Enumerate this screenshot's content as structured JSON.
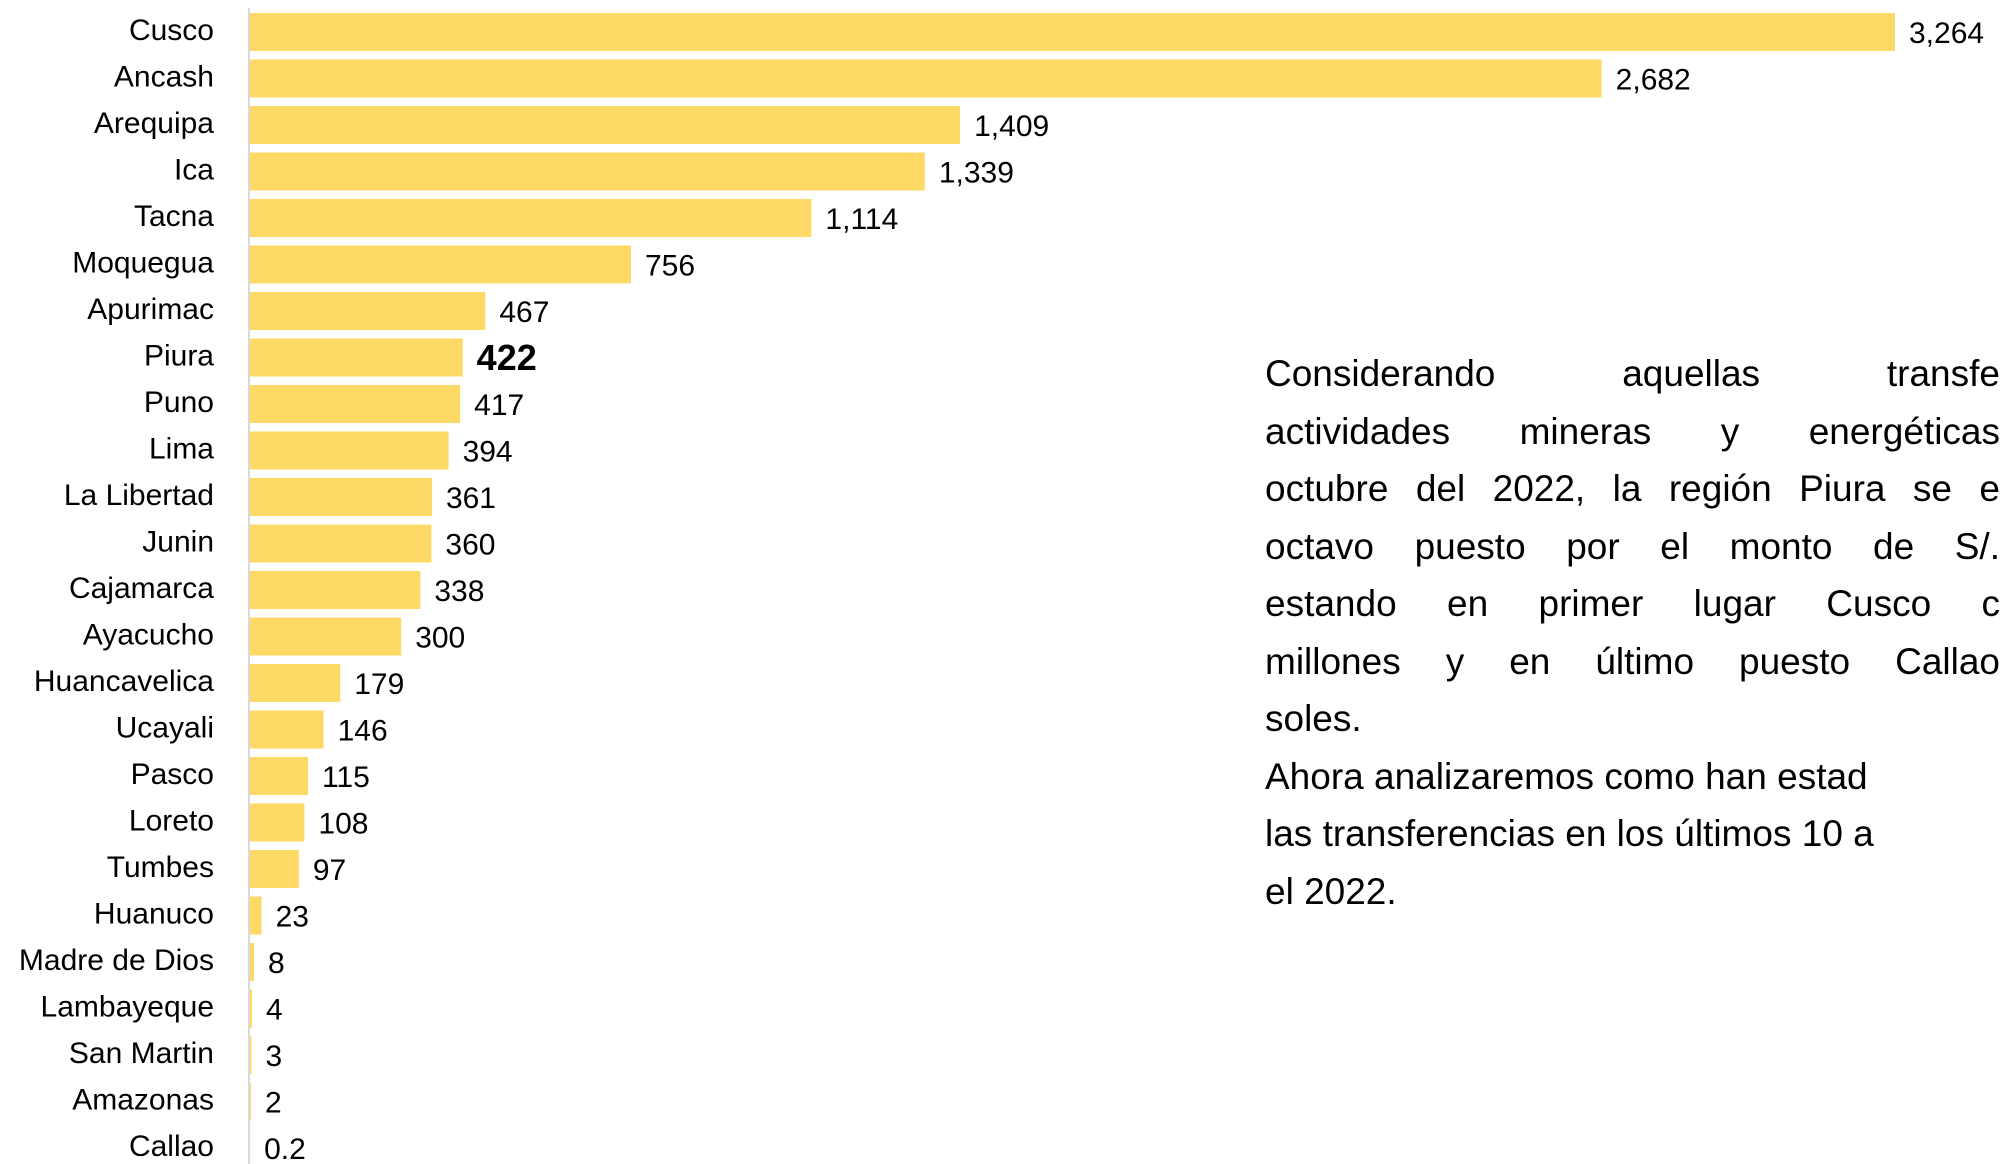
{
  "chart_data": {
    "type": "barh",
    "categories": [
      "Cusco",
      "Ancash",
      "Arequipa",
      "Ica",
      "Tacna",
      "Moquegua",
      "Apurimac",
      "Piura",
      "Puno",
      "Lima",
      "La Libertad",
      "Junin",
      "Cajamarca",
      "Ayacucho",
      "Huancavelica",
      "Ucayali",
      "Pasco",
      "Loreto",
      "Tumbes",
      "Huanuco",
      "Madre de Dios",
      "Lambayeque",
      "San Martin",
      "Amazonas",
      "Callao"
    ],
    "values": [
      3264,
      2682,
      1409,
      1339,
      1114,
      756,
      467,
      422,
      417,
      394,
      361,
      360,
      338,
      300,
      179,
      146,
      115,
      108,
      97,
      23,
      8,
      4,
      3,
      2,
      0.2
    ],
    "value_labels": [
      "3,264",
      "2,682",
      "1,409",
      "1,339",
      "1,114",
      "756",
      "467",
      "422",
      "417",
      "394",
      "361",
      "360",
      "338",
      "300",
      "179",
      "146",
      "115",
      "108",
      "97",
      "23",
      "8",
      "4",
      "3",
      "2",
      "0.2"
    ],
    "color": "#FFD966",
    "highlight_category": "Piura"
  },
  "paragraph": {
    "lines": [
      "Considerando aquellas transfe",
      "actividades mineras y energéticas",
      "octubre del 2022, la región Piura se e",
      "octavo puesto por el monto de S/.",
      "estando en primer lugar Cusco c",
      "millones y en último puesto Callao",
      "soles.",
      "Ahora analizaremos como han estad",
      "las transferencias en los últimos 10 a",
      "el 2022."
    ]
  }
}
